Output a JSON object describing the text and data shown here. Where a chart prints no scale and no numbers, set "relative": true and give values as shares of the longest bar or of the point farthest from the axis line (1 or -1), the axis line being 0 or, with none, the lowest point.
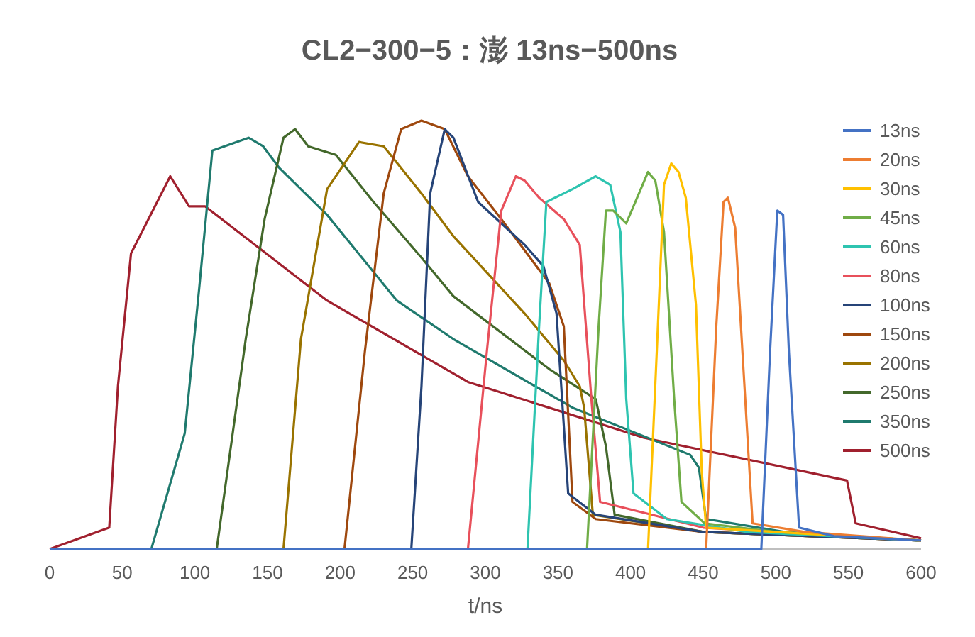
{
  "chart_data": {
    "type": "line",
    "title": "CL2−300−5：澎 13ns−500ns",
    "xlabel": "t/ns",
    "relative": true,
    "xlim": [
      0,
      600
    ],
    "xticks": [
      0,
      50,
      100,
      150,
      200,
      250,
      300,
      350,
      400,
      450,
      500,
      550,
      600
    ],
    "grid": false,
    "legend": "right",
    "marker": "none",
    "line_style": "solid",
    "series": [
      {
        "name": "13ns",
        "color": "#4472c4",
        "x": [
          0,
          490,
          496,
          501,
          505,
          509,
          516,
          540,
          600
        ],
        "values": [
          0,
          0,
          0.46,
          0.79,
          0.78,
          0.46,
          0.05,
          0.03,
          0.02
        ]
      },
      {
        "name": "20ns",
        "color": "#ed7d31",
        "x": [
          0,
          452,
          459,
          464,
          467,
          472,
          477,
          484,
          520,
          600
        ],
        "values": [
          0,
          0,
          0.52,
          0.81,
          0.82,
          0.75,
          0.46,
          0.06,
          0.04,
          0.02
        ]
      },
      {
        "name": "30ns",
        "color": "#ffc000",
        "x": [
          0,
          412,
          418,
          423,
          428,
          433,
          438,
          445,
          449,
          452,
          500,
          600
        ],
        "values": [
          0,
          0,
          0.46,
          0.85,
          0.9,
          0.88,
          0.82,
          0.57,
          0.18,
          0.05,
          0.04,
          0.02
        ]
      },
      {
        "name": "45ns",
        "color": "#70ad47",
        "x": [
          0,
          370,
          378,
          383,
          388,
          397,
          412,
          417,
          423,
          430,
          435,
          451,
          500,
          600
        ],
        "values": [
          0,
          0,
          0.52,
          0.79,
          0.79,
          0.76,
          0.88,
          0.86,
          0.74,
          0.35,
          0.11,
          0.06,
          0.04,
          0.02
        ]
      },
      {
        "name": "60ns",
        "color": "#2ec4b0",
        "x": [
          0,
          329,
          337,
          342,
          360,
          376,
          386,
          393,
          397,
          402,
          425,
          480,
          600
        ],
        "values": [
          0,
          0,
          0.52,
          0.81,
          0.84,
          0.87,
          0.85,
          0.74,
          0.35,
          0.13,
          0.07,
          0.04,
          0.02
        ]
      },
      {
        "name": "80ns",
        "color": "#e8505b",
        "x": [
          0,
          288,
          301,
          311,
          321,
          327,
          337,
          354,
          365,
          373,
          379,
          450,
          600
        ],
        "values": [
          0,
          0,
          0.46,
          0.79,
          0.87,
          0.86,
          0.82,
          0.77,
          0.71,
          0.35,
          0.11,
          0.05,
          0.02
        ]
      },
      {
        "name": "100ns",
        "color": "#264478",
        "x": [
          0,
          249,
          256,
          262,
          272,
          278,
          295,
          327,
          340,
          349,
          357,
          376,
          450,
          600
        ],
        "values": [
          0,
          0,
          0.38,
          0.83,
          0.98,
          0.96,
          0.81,
          0.71,
          0.66,
          0.55,
          0.13,
          0.08,
          0.04,
          0.02
        ]
      },
      {
        "name": "150ns",
        "color": "#9e480e",
        "x": [
          0,
          203,
          217,
          230,
          242,
          256,
          272,
          288,
          311,
          344,
          354,
          360,
          376,
          450,
          600
        ],
        "values": [
          0,
          0,
          0.46,
          0.83,
          0.98,
          1,
          0.98,
          0.87,
          0.77,
          0.62,
          0.52,
          0.11,
          0.07,
          0.04,
          0.02
        ]
      },
      {
        "name": "200ns",
        "color": "#997300",
        "x": [
          0,
          161,
          173,
          191,
          213,
          230,
          256,
          278,
          327,
          354,
          365,
          368,
          374,
          450,
          600
        ],
        "values": [
          0,
          0,
          0.49,
          0.84,
          0.95,
          0.94,
          0.83,
          0.73,
          0.55,
          0.44,
          0.38,
          0.33,
          0.08,
          0.04,
          0.02
        ]
      },
      {
        "name": "250ns",
        "color": "#43682b",
        "x": [
          0,
          115,
          135,
          148,
          161,
          169,
          178,
          197,
          223,
          256,
          278,
          344,
          376,
          383,
          389,
          450,
          600
        ],
        "values": [
          0,
          0,
          0.49,
          0.77,
          0.96,
          0.98,
          0.94,
          0.92,
          0.81,
          0.68,
          0.59,
          0.42,
          0.35,
          0.24,
          0.08,
          0.04,
          0.02
        ]
      },
      {
        "name": "350ns",
        "color": "#1f7a6e",
        "x": [
          0,
          70,
          93,
          103,
          112,
          137,
          147,
          158,
          191,
          239,
          278,
          360,
          441,
          447,
          452,
          506,
          600
        ],
        "values": [
          0,
          0,
          0.27,
          0.61,
          0.93,
          0.96,
          0.94,
          0.89,
          0.78,
          0.58,
          0.49,
          0.33,
          0.22,
          0.19,
          0.07,
          0.04,
          0.02
        ]
      },
      {
        "name": "500ns",
        "color": "#a0202e",
        "x": [
          0,
          41,
          47,
          56,
          83,
          96,
          107,
          191,
          288,
          409,
          549,
          555,
          600
        ],
        "values": [
          0,
          0.05,
          0.38,
          0.69,
          0.87,
          0.8,
          0.8,
          0.58,
          0.39,
          0.26,
          0.16,
          0.06,
          0.025
        ]
      }
    ]
  }
}
